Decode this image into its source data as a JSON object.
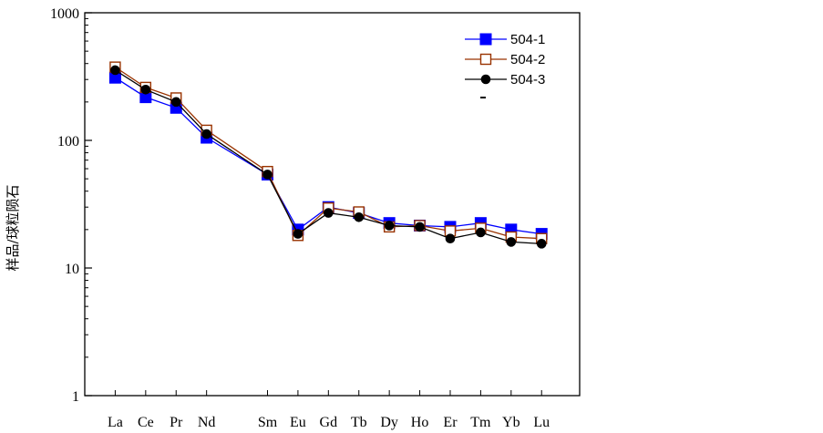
{
  "chart_data": {
    "type": "line",
    "title": "",
    "xlabel": "",
    "ylabel": "样品/球粒陨石",
    "y_scale": "log",
    "ylim": [
      1,
      1000
    ],
    "y_ticks": [
      "1",
      "10",
      "100",
      "1000"
    ],
    "categories": [
      "La",
      "Ce",
      "Pr",
      "Nd",
      "Sm",
      "Eu",
      "Gd",
      "Tb",
      "Dy",
      "Ho",
      "Er",
      "Tm",
      "Yb",
      "Lu"
    ],
    "category_positions": [
      1,
      2,
      3,
      4,
      6,
      7,
      8,
      9,
      10,
      11,
      12,
      13,
      14,
      15
    ],
    "legend_position": "top-right",
    "series": [
      {
        "name": "504-1",
        "color": "#0000ff",
        "marker": "filled-square",
        "values": [
          310,
          218,
          180,
          105,
          54,
          20,
          30,
          27,
          22.5,
          21.5,
          21,
          22.5,
          20,
          18.5
        ]
      },
      {
        "name": "504-2",
        "color": "#993300",
        "marker": "open-square",
        "values": [
          375,
          260,
          215,
          120,
          57,
          18,
          29.5,
          27.5,
          21,
          21.5,
          19.5,
          20.5,
          17.5,
          17
        ]
      },
      {
        "name": "504-3",
        "color": "#000000",
        "marker": "filled-circle",
        "values": [
          355,
          250,
          200,
          112,
          54,
          18.5,
          27,
          25,
          21.5,
          21,
          17,
          19,
          16,
          15.5
        ]
      }
    ]
  }
}
